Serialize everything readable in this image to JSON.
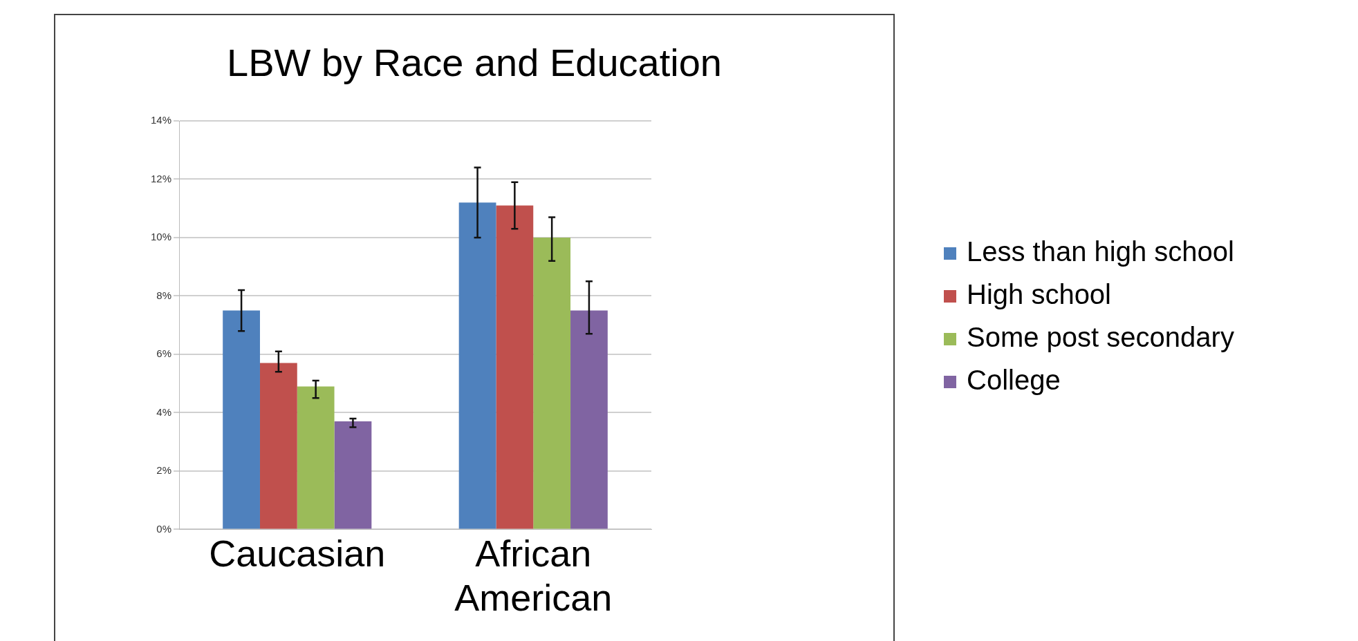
{
  "chart_data": {
    "type": "bar",
    "title": "LBW by Race and Education",
    "categories": [
      "Caucasian",
      "African American"
    ],
    "series": [
      {
        "name": "Less than high school",
        "color": "#4f81bd",
        "values": [
          7.5,
          11.2
        ],
        "errors": [
          [
            6.8,
            8.2
          ],
          [
            10.0,
            12.4
          ]
        ]
      },
      {
        "name": "High school",
        "color": "#c0504d",
        "values": [
          5.7,
          11.1
        ],
        "errors": [
          [
            5.4,
            6.1
          ],
          [
            10.3,
            11.9
          ]
        ]
      },
      {
        "name": "Some post secondary",
        "color": "#9bbb59",
        "values": [
          4.9,
          10.0
        ],
        "errors": [
          [
            4.5,
            5.1
          ],
          [
            9.2,
            10.7
          ]
        ]
      },
      {
        "name": "College",
        "color": "#8064a2",
        "values": [
          3.7,
          7.5
        ],
        "errors": [
          [
            3.5,
            3.8
          ],
          [
            6.7,
            8.5
          ]
        ]
      }
    ],
    "ylim": [
      0,
      14
    ],
    "yticks": [
      {
        "value": 0,
        "label": "0%"
      },
      {
        "value": 2,
        "label": "2%"
      },
      {
        "value": 4,
        "label": "4%"
      },
      {
        "value": 6,
        "label": "6%"
      },
      {
        "value": 8,
        "label": "8%"
      },
      {
        "value": 10,
        "label": "10%"
      },
      {
        "value": 12,
        "label": "12%"
      },
      {
        "value": 14,
        "label": "14%"
      }
    ],
    "grid": "y",
    "legend": "right"
  }
}
